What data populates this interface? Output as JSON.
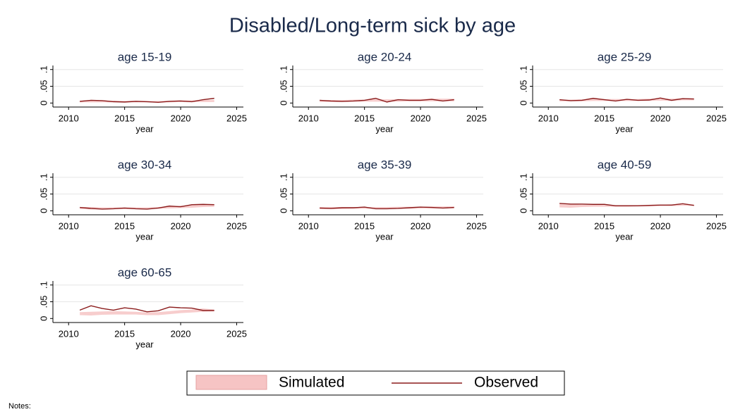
{
  "title": "Disabled/Long-term sick by age",
  "notes": "Notes:",
  "legend": "bottom",
  "chart_data": [
    {
      "type": "line",
      "title": "age 15-19",
      "x_label": "year",
      "x": [
        2011,
        2012,
        2013,
        2014,
        2015,
        2016,
        2017,
        2018,
        2019,
        2020,
        2021,
        2022,
        2023
      ],
      "xlim": [
        2008.6,
        2025.6
      ],
      "xticks": [
        2010,
        2015,
        2020,
        2025
      ],
      "ylim": [
        -0.012,
        0.112
      ],
      "yticks": [
        0,
        {
          "value": 0.05,
          "label": ".05"
        },
        {
          "value": 0.1,
          "label": ".1"
        }
      ],
      "grid": true,
      "series": [
        {
          "name": "Simulated",
          "color": "#f6c4c4",
          "low": [
            0.002,
            0.002,
            0.002,
            0.002,
            0.002,
            0.002,
            0.002,
            0.002,
            0.002,
            0.003,
            0.003,
            0.003,
            0.003
          ],
          "high": [
            0.007,
            0.008,
            0.008,
            0.007,
            0.006,
            0.007,
            0.006,
            0.006,
            0.007,
            0.008,
            0.008,
            0.009,
            0.009
          ]
        },
        {
          "name": "Observed",
          "color": "#8b1c1c",
          "values": [
            0.005,
            0.008,
            0.007,
            0.004,
            0.003,
            0.005,
            0.004,
            0.002,
            0.005,
            0.006,
            0.004,
            0.01,
            0.014
          ]
        }
      ]
    },
    {
      "type": "line",
      "title": "age 20-24",
      "x_label": "year",
      "x": [
        2011,
        2012,
        2013,
        2014,
        2015,
        2016,
        2017,
        2018,
        2019,
        2020,
        2021,
        2022,
        2023
      ],
      "xlim": [
        2008.6,
        2025.6
      ],
      "xticks": [
        2010,
        2015,
        2020,
        2025
      ],
      "ylim": [
        -0.012,
        0.112
      ],
      "yticks": [
        0,
        {
          "value": 0.05,
          "label": ".05"
        },
        {
          "value": 0.1,
          "label": ".1"
        }
      ],
      "grid": true,
      "series": [
        {
          "name": "Simulated",
          "color": "#f6c4c4",
          "low": [
            0.003,
            0.003,
            0.003,
            0.004,
            0.004,
            0.004,
            0.004,
            0.004,
            0.005,
            0.005,
            0.005,
            0.005,
            0.005
          ],
          "high": [
            0.009,
            0.009,
            0.009,
            0.01,
            0.01,
            0.011,
            0.011,
            0.011,
            0.012,
            0.012,
            0.013,
            0.013,
            0.013
          ]
        },
        {
          "name": "Observed",
          "color": "#8b1c1c",
          "values": [
            0.008,
            0.006,
            0.005,
            0.006,
            0.008,
            0.014,
            0.003,
            0.01,
            0.008,
            0.008,
            0.011,
            0.006,
            0.01
          ]
        }
      ]
    },
    {
      "type": "line",
      "title": "age 25-29",
      "x_label": "year",
      "x": [
        2011,
        2012,
        2013,
        2014,
        2015,
        2016,
        2017,
        2018,
        2019,
        2020,
        2021,
        2022,
        2023
      ],
      "xlim": [
        2008.6,
        2025.6
      ],
      "xticks": [
        2010,
        2015,
        2020,
        2025
      ],
      "ylim": [
        -0.012,
        0.112
      ],
      "yticks": [
        0,
        {
          "value": 0.05,
          "label": ".05"
        },
        {
          "value": 0.1,
          "label": ".1"
        }
      ],
      "grid": true,
      "series": [
        {
          "name": "Simulated",
          "color": "#f6c4c4",
          "low": [
            0.005,
            0.005,
            0.005,
            0.006,
            0.006,
            0.006,
            0.006,
            0.006,
            0.007,
            0.007,
            0.007,
            0.008,
            0.008
          ],
          "high": [
            0.01,
            0.01,
            0.011,
            0.012,
            0.012,
            0.012,
            0.012,
            0.012,
            0.013,
            0.013,
            0.013,
            0.014,
            0.014
          ]
        },
        {
          "name": "Observed",
          "color": "#8b1c1c",
          "values": [
            0.01,
            0.007,
            0.008,
            0.014,
            0.01,
            0.006,
            0.011,
            0.008,
            0.009,
            0.015,
            0.008,
            0.013,
            0.012
          ]
        }
      ]
    },
    {
      "type": "line",
      "title": "age 30-34",
      "x_label": "year",
      "x": [
        2011,
        2012,
        2013,
        2014,
        2015,
        2016,
        2017,
        2018,
        2019,
        2020,
        2021,
        2022,
        2023
      ],
      "xlim": [
        2008.6,
        2025.6
      ],
      "xticks": [
        2010,
        2015,
        2020,
        2025
      ],
      "ylim": [
        -0.012,
        0.112
      ],
      "yticks": [
        0,
        {
          "value": 0.05,
          "label": ".05"
        },
        {
          "value": 0.1,
          "label": ".1"
        }
      ],
      "grid": true,
      "series": [
        {
          "name": "Simulated",
          "color": "#f6c4c4",
          "low": [
            0.005,
            0.004,
            0.004,
            0.005,
            0.005,
            0.005,
            0.005,
            0.006,
            0.007,
            0.008,
            0.009,
            0.011,
            0.012
          ],
          "high": [
            0.011,
            0.011,
            0.01,
            0.01,
            0.01,
            0.01,
            0.01,
            0.011,
            0.013,
            0.015,
            0.017,
            0.019,
            0.02
          ]
        },
        {
          "name": "Observed",
          "color": "#8b1c1c",
          "values": [
            0.01,
            0.007,
            0.005,
            0.006,
            0.008,
            0.006,
            0.005,
            0.008,
            0.014,
            0.012,
            0.018,
            0.019,
            0.018
          ]
        }
      ]
    },
    {
      "type": "line",
      "title": "age 35-39",
      "x_label": "year",
      "x": [
        2011,
        2012,
        2013,
        2014,
        2015,
        2016,
        2017,
        2018,
        2019,
        2020,
        2021,
        2022,
        2023
      ],
      "xlim": [
        2008.6,
        2025.6
      ],
      "xticks": [
        2010,
        2015,
        2020,
        2025
      ],
      "ylim": [
        -0.012,
        0.112
      ],
      "yticks": [
        0,
        {
          "value": 0.05,
          "label": ".05"
        },
        {
          "value": 0.1,
          "label": ".1"
        }
      ],
      "grid": true,
      "series": [
        {
          "name": "Simulated",
          "color": "#f6c4c4",
          "low": [
            0.005,
            0.005,
            0.005,
            0.006,
            0.006,
            0.006,
            0.006,
            0.006,
            0.006,
            0.007,
            0.007,
            0.007,
            0.007
          ],
          "high": [
            0.011,
            0.011,
            0.011,
            0.011,
            0.011,
            0.011,
            0.011,
            0.012,
            0.012,
            0.012,
            0.013,
            0.013,
            0.013
          ]
        },
        {
          "name": "Observed",
          "color": "#8b1c1c",
          "values": [
            0.008,
            0.007,
            0.009,
            0.009,
            0.011,
            0.006,
            0.006,
            0.007,
            0.009,
            0.011,
            0.01,
            0.008,
            0.01
          ]
        }
      ]
    },
    {
      "type": "line",
      "title": "age 40-59",
      "x_label": "year",
      "x": [
        2011,
        2012,
        2013,
        2014,
        2015,
        2016,
        2017,
        2018,
        2019,
        2020,
        2021,
        2022,
        2023
      ],
      "xlim": [
        2008.6,
        2025.6
      ],
      "xticks": [
        2010,
        2015,
        2020,
        2025
      ],
      "ylim": [
        -0.012,
        0.112
      ],
      "yticks": [
        0,
        {
          "value": 0.05,
          "label": ".05"
        },
        {
          "value": 0.1,
          "label": ".1"
        }
      ],
      "grid": true,
      "series": [
        {
          "name": "Simulated",
          "color": "#f6c4c4",
          "low": [
            0.01,
            0.009,
            0.011,
            0.012,
            0.012,
            0.012,
            0.012,
            0.013,
            0.013,
            0.014,
            0.014,
            0.015,
            0.015
          ],
          "high": [
            0.02,
            0.019,
            0.018,
            0.018,
            0.017,
            0.017,
            0.017,
            0.017,
            0.018,
            0.018,
            0.019,
            0.019,
            0.019
          ]
        },
        {
          "name": "Observed",
          "color": "#8b1c1c",
          "values": [
            0.022,
            0.02,
            0.02,
            0.019,
            0.019,
            0.015,
            0.015,
            0.015,
            0.016,
            0.017,
            0.017,
            0.021,
            0.016
          ]
        }
      ]
    },
    {
      "type": "line",
      "title": "age 60-65",
      "x_label": "year",
      "x": [
        2011,
        2012,
        2013,
        2014,
        2015,
        2016,
        2017,
        2018,
        2019,
        2020,
        2021,
        2022,
        2023
      ],
      "xlim": [
        2008.6,
        2025.6
      ],
      "xticks": [
        2010,
        2015,
        2020,
        2025
      ],
      "ylim": [
        -0.012,
        0.112
      ],
      "yticks": [
        0,
        {
          "value": 0.05,
          "label": ".05"
        },
        {
          "value": 0.1,
          "label": ".1"
        }
      ],
      "grid": true,
      "series": [
        {
          "name": "Simulated",
          "color": "#f6c4c4",
          "low": [
            0.01,
            0.009,
            0.011,
            0.012,
            0.012,
            0.012,
            0.01,
            0.01,
            0.013,
            0.016,
            0.018,
            0.02,
            0.021
          ],
          "high": [
            0.019,
            0.02,
            0.021,
            0.022,
            0.021,
            0.02,
            0.018,
            0.019,
            0.022,
            0.025,
            0.027,
            0.03,
            0.027
          ]
        },
        {
          "name": "Observed",
          "color": "#8b1c1c",
          "values": [
            0.025,
            0.038,
            0.03,
            0.025,
            0.032,
            0.028,
            0.02,
            0.023,
            0.034,
            0.032,
            0.031,
            0.024,
            0.024
          ]
        }
      ]
    }
  ]
}
